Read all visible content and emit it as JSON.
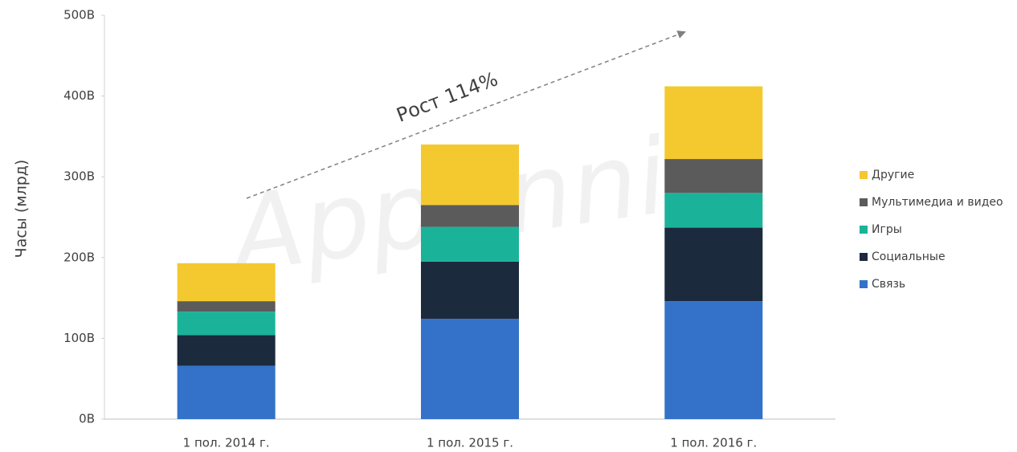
{
  "chart_data": {
    "type": "bar",
    "stacked": true,
    "y_label": "Часы (млрд)",
    "annotation": "Рост 114%",
    "watermark": "AppAnnie",
    "categories": [
      "1 пол. 2014 г.",
      "1 пол. 2015 г.",
      "1 пол. 2016 г."
    ],
    "series": [
      {
        "name": "Связь",
        "color": "#3372c8",
        "values": [
          66,
          124,
          146
        ]
      },
      {
        "name": "Социальные",
        "color": "#1c2a3e",
        "values": [
          38,
          71,
          91
        ]
      },
      {
        "name": "Игры",
        "color": "#1ab39a",
        "values": [
          29,
          43,
          43
        ]
      },
      {
        "name": "Мультимедиа и видео",
        "color": "#5b5b5b",
        "values": [
          13,
          27,
          42
        ]
      },
      {
        "name": "Другие",
        "color": "#f4c92f",
        "values": [
          47,
          75,
          90
        ]
      }
    ],
    "ylim": [
      0,
      500
    ],
    "yticks": [
      {
        "value": 0,
        "label": "0В"
      },
      {
        "value": 100,
        "label": "100В"
      },
      {
        "value": 200,
        "label": "200В"
      },
      {
        "value": 300,
        "label": "300В"
      },
      {
        "value": 400,
        "label": "400В"
      },
      {
        "value": 500,
        "label": "500В"
      }
    ],
    "legend": "right"
  }
}
